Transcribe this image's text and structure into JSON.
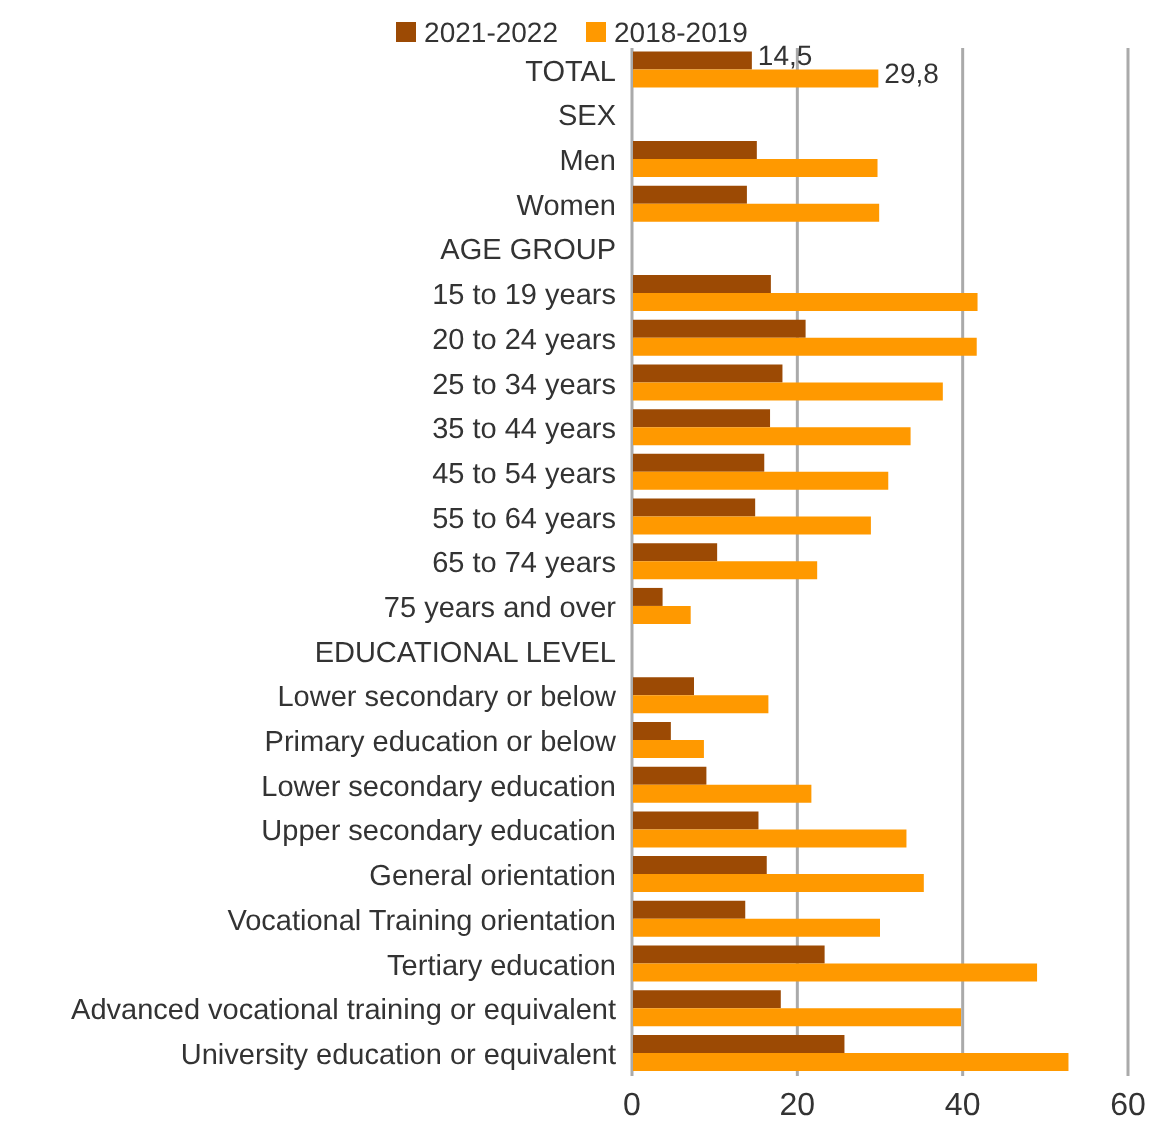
{
  "chart_data": {
    "type": "bar",
    "orientation": "horizontal",
    "categories": [
      "TOTAL",
      "SEX",
      "Men",
      "Women",
      "AGE GROUP",
      "15 to 19 years",
      "20 to 24 years",
      "25 to 34 years",
      "35 to 44 years",
      "45 to 54 years",
      "55 to 64 years",
      "65 to 74 years",
      "75 years and over",
      "EDUCATIONAL LEVEL",
      "Lower secondary or below",
      "Primary education or below",
      "Lower secondary education",
      "Upper secondary education",
      "General orientation",
      "Vocational Training orientation",
      "Tertiary education",
      "Advanced vocational training or equivalent",
      "University education or equivalent"
    ],
    "series": [
      {
        "name": "2021-2022",
        "color": "#9c4a04",
        "values": [
          14.5,
          null,
          15.1,
          13.9,
          null,
          16.8,
          21.0,
          18.2,
          16.7,
          16.0,
          14.9,
          10.3,
          3.7,
          null,
          7.5,
          4.7,
          9.0,
          15.3,
          16.3,
          13.7,
          23.3,
          18.0,
          25.7
        ],
        "value_labels": [
          "14,5",
          null,
          null,
          null,
          null,
          null,
          null,
          null,
          null,
          null,
          null,
          null,
          null,
          null,
          null,
          null,
          null,
          null,
          null,
          null,
          null,
          null,
          null
        ]
      },
      {
        "name": "2018-2019",
        "color": "#ff9900",
        "values": [
          29.8,
          null,
          29.7,
          29.9,
          null,
          41.8,
          41.7,
          37.6,
          33.7,
          31.0,
          28.9,
          22.4,
          7.1,
          null,
          16.5,
          8.7,
          21.7,
          33.2,
          35.3,
          30.0,
          49.0,
          39.8,
          52.8
        ],
        "value_labels": [
          "29,8",
          null,
          null,
          null,
          null,
          null,
          null,
          null,
          null,
          null,
          null,
          null,
          null,
          null,
          null,
          null,
          null,
          null,
          null,
          null,
          null,
          null,
          null
        ]
      }
    ],
    "xlim": [
      0,
      60
    ],
    "xticks": [
      0,
      20,
      40,
      60
    ],
    "grid": "x",
    "legend": "top"
  }
}
